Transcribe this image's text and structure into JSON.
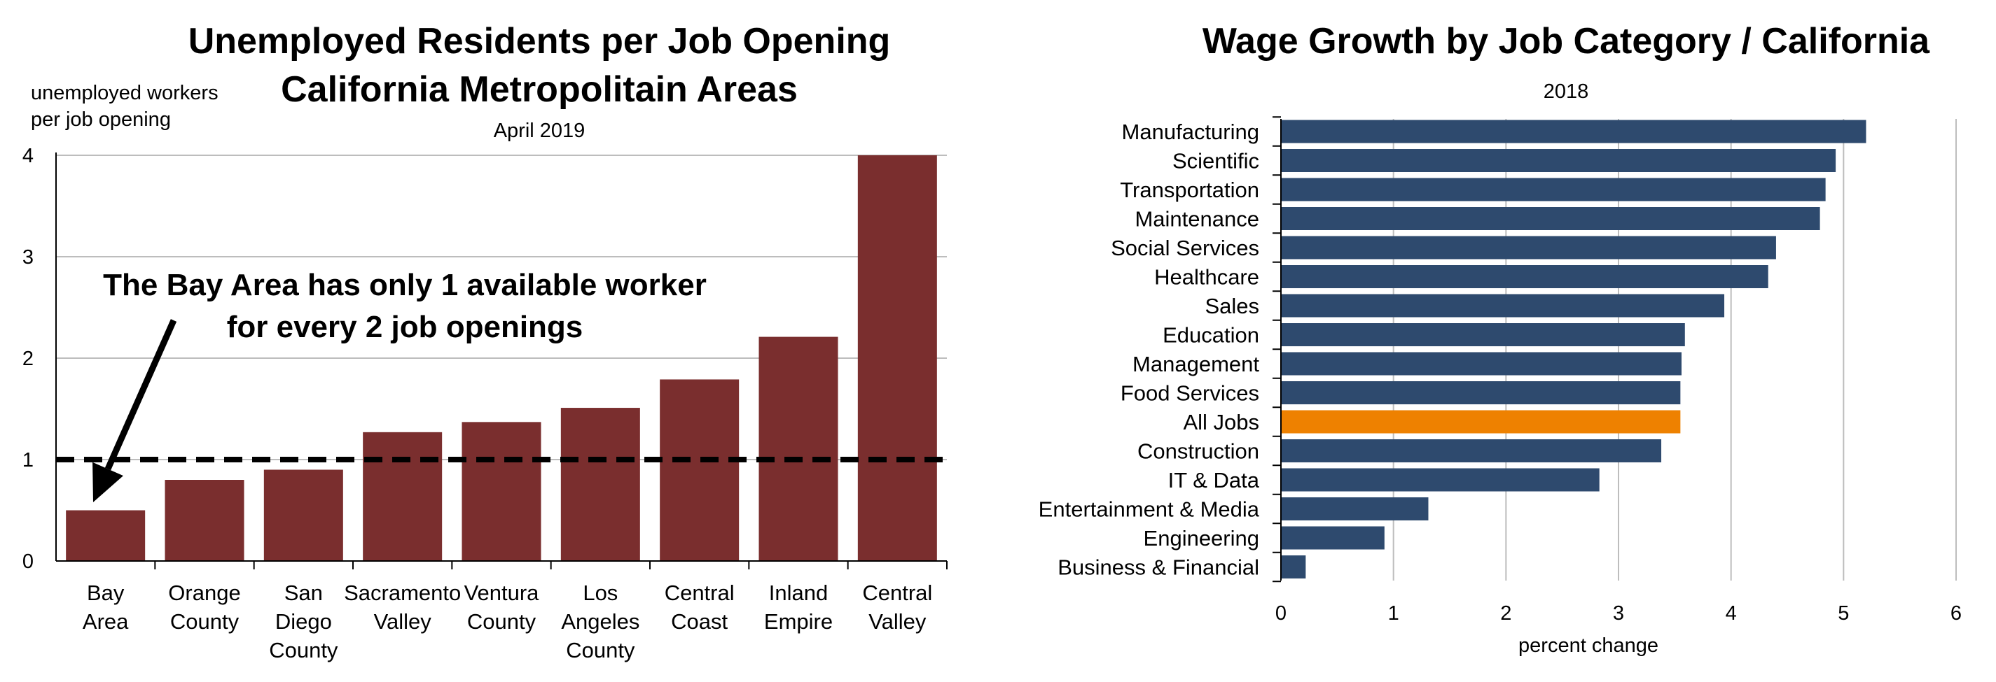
{
  "chart_data": [
    {
      "type": "bar",
      "title": [
        "Unemployed Residents per Job Opening",
        "California Metropolitain Areas"
      ],
      "subtitle": "April 2019",
      "ylabel": [
        "unemployed workers",
        "per job opening"
      ],
      "xlabel": "",
      "ylim": [
        0,
        4
      ],
      "yticks": [
        0,
        1,
        2,
        3,
        4
      ],
      "grid": true,
      "bar_color": "#7a2e2e",
      "categories": [
        [
          "Bay",
          "Area"
        ],
        [
          "Orange",
          "County"
        ],
        [
          "San",
          "Diego",
          "County"
        ],
        [
          "Sacramento",
          "Valley"
        ],
        [
          "Ventura",
          "County"
        ],
        [
          "Los",
          "Angeles",
          "County"
        ],
        [
          "Central",
          "Coast"
        ],
        [
          "Inland",
          "Empire"
        ],
        [
          "Central",
          "Valley"
        ]
      ],
      "values": [
        0.5,
        0.8,
        0.9,
        1.27,
        1.37,
        1.51,
        1.79,
        2.21,
        4.0
      ],
      "reference_line": {
        "value": 1,
        "style": "dashed",
        "color": "#000000"
      },
      "annotation": {
        "text": [
          "The Bay Area has only 1 available worker",
          "for every 2 job openings"
        ],
        "points_to": "Bay Area"
      }
    },
    {
      "type": "bar",
      "orientation": "horizontal",
      "title": "Wage Growth by Job Category / California",
      "subtitle": "2018",
      "xlabel": "percent change",
      "ylabel": "",
      "xlim": [
        0,
        6
      ],
      "xticks": [
        0,
        1,
        2,
        3,
        4,
        5,
        6
      ],
      "grid": true,
      "bar_color": "#2e4a6e",
      "highlight_color": "#ee8100",
      "highlight_category": "All Jobs",
      "categories": [
        "Manufacturing",
        "Scientific",
        "Transportation",
        "Maintenance",
        "Social Services",
        "Healthcare",
        "Sales",
        "Education",
        "Management",
        "Food Services",
        "All Jobs",
        "Construction",
        "IT & Data",
        "Entertainment & Media",
        "Engineering",
        "Business & Financial"
      ],
      "values": [
        5.2,
        4.93,
        4.84,
        4.79,
        4.4,
        4.33,
        3.94,
        3.59,
        3.56,
        3.55,
        3.55,
        3.38,
        2.83,
        1.31,
        0.92,
        0.22
      ]
    }
  ]
}
